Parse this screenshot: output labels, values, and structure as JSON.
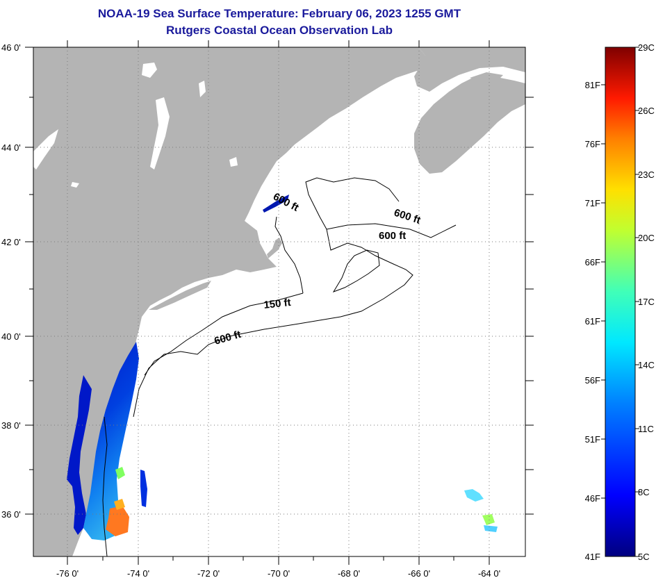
{
  "title": {
    "line1": "NOAA-19 Sea Surface Temperature:  February 06, 2023 1255 GMT",
    "line2": "Rutgers Coastal Ocean Observation Lab"
  },
  "map": {
    "lon_labels": [
      "-76 0'",
      "-74 0'",
      "-72 0'",
      "-70 0'",
      "-68 0'",
      "-66 0'",
      "-64 0'"
    ],
    "lat_labels": [
      "46 0'",
      "44 0'",
      "42 0'",
      "40 0'",
      "38 0'",
      "36 0'"
    ],
    "contour_labels": [
      "600 ft",
      "600 ft",
      "600 ft",
      "150 ft",
      "600 ft"
    ],
    "colors": {
      "land": "#b4b4b4",
      "ocean": "#ffffff",
      "grid": "#7a7a7a"
    }
  },
  "colorbar": {
    "celsius_labels": [
      "29C",
      "26C",
      "23C",
      "20C",
      "17C",
      "14C",
      "11C",
      "8C",
      "5C"
    ],
    "fahrenheit_labels": [
      "81F",
      "76F",
      "71F",
      "66F",
      "61F",
      "56F",
      "51F",
      "46F",
      "41F"
    ]
  }
}
